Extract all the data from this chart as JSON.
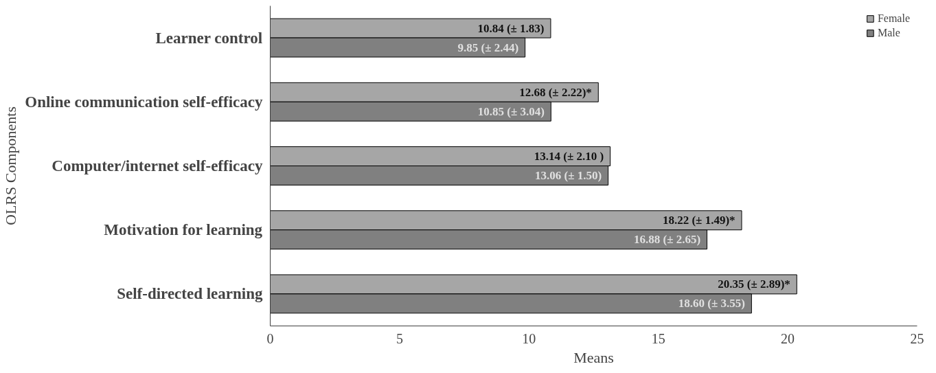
{
  "chart_data": {
    "type": "bar",
    "orientation": "horizontal",
    "xlabel": "Means",
    "ylabel": "OLRS Components",
    "categories": [
      "Learner control",
      "Online communication self-efficacy",
      "Computer/internet self-efficacy",
      "Motivation for learning",
      "Self-directed learning"
    ],
    "series": [
      {
        "name": "Female",
        "color": "#a6a6a6",
        "values": [
          10.84,
          12.68,
          13.14,
          18.22,
          20.35
        ],
        "value_labels": [
          "10.84 (± 1.83)",
          "12.68 (± 2.22)*",
          "13.14 (± 2.10 )",
          "18.22 (± 1.49)*",
          "20.35 (± 2.89)*"
        ]
      },
      {
        "name": "Male",
        "color": "#808080",
        "values": [
          9.85,
          10.85,
          13.06,
          16.88,
          18.6
        ],
        "value_labels": [
          "9.85 (± 2.44)",
          "10.85 (± 3.04)",
          "13.06 (± 1.50)",
          "16.88 (± 2.65)",
          "18.60 (± 3.55)"
        ]
      }
    ],
    "xlim": [
      0,
      25
    ],
    "xticks": [
      0,
      5,
      10,
      15,
      20,
      25
    ],
    "grid": false,
    "legend": "top right"
  }
}
